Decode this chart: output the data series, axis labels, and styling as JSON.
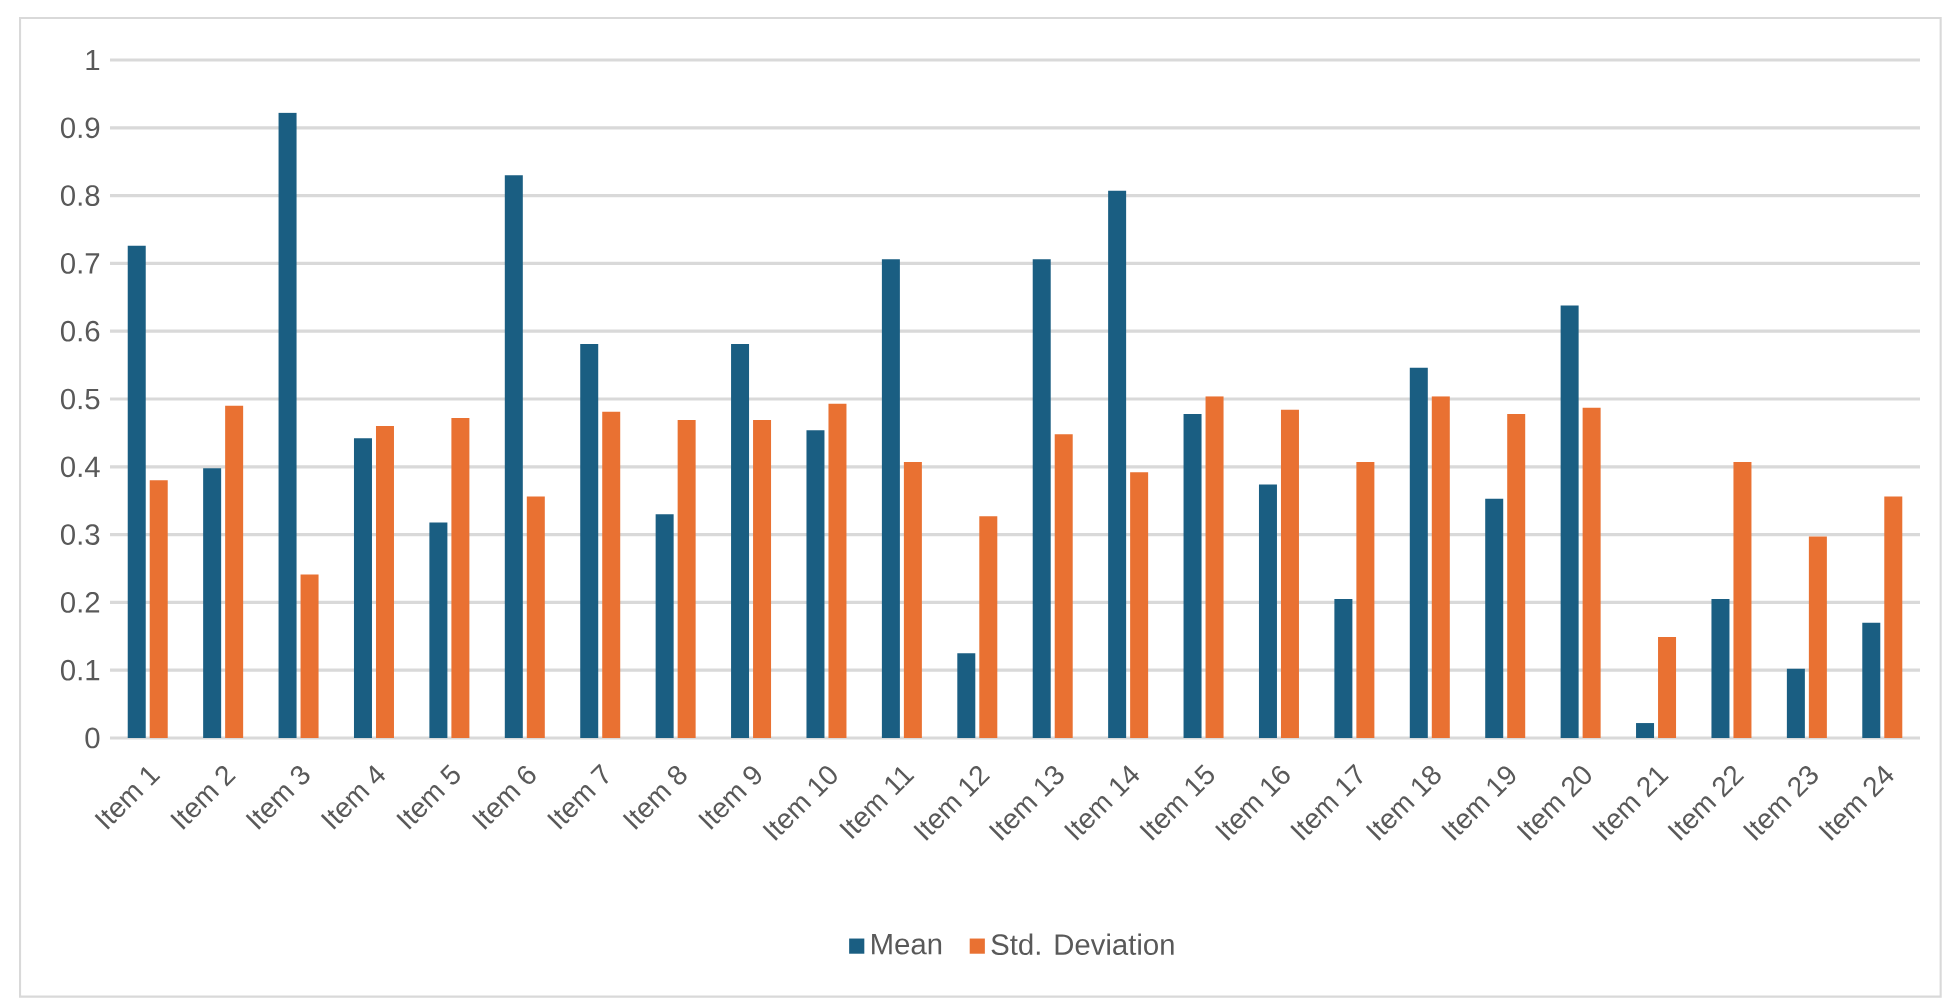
{
  "chart_data": {
    "type": "bar",
    "categories": [
      "Item 1",
      "Item 2",
      "Item 3",
      "Item 4",
      "Item 5",
      "Item 6",
      "Item 7",
      "Item 8",
      "Item 9",
      "Item 10",
      "Item 11",
      "Item 12",
      "Item 13",
      "Item 14",
      "Item 15",
      "Item 16",
      "Item 17",
      "Item 18",
      "Item 19",
      "Item 20",
      "Item 21",
      "Item 22",
      "Item 23",
      "Item 24"
    ],
    "series": [
      {
        "name": "Mean",
        "color": "#1a5e82",
        "values": [
          0.726,
          0.398,
          0.922,
          0.442,
          0.318,
          0.83,
          0.581,
          0.33,
          0.581,
          0.454,
          0.706,
          0.125,
          0.706,
          0.807,
          0.478,
          0.374,
          0.205,
          0.546,
          0.353,
          0.638,
          0.022,
          0.205,
          0.102,
          0.17
        ]
      },
      {
        "name": "Std. Deviation",
        "color": "#e97132",
        "values": [
          0.38,
          0.49,
          0.241,
          0.46,
          0.472,
          0.356,
          0.481,
          0.469,
          0.469,
          0.493,
          0.407,
          0.327,
          0.448,
          0.392,
          0.504,
          0.484,
          0.407,
          0.504,
          0.478,
          0.487,
          0.149,
          0.407,
          0.297,
          0.356
        ]
      }
    ],
    "ylim": [
      0,
      1
    ],
    "yticks": [
      0,
      0.1,
      0.2,
      0.3,
      0.4,
      0.5,
      0.6,
      0.7,
      0.8,
      0.9,
      1
    ],
    "grid": "y",
    "legend": "bottom"
  }
}
